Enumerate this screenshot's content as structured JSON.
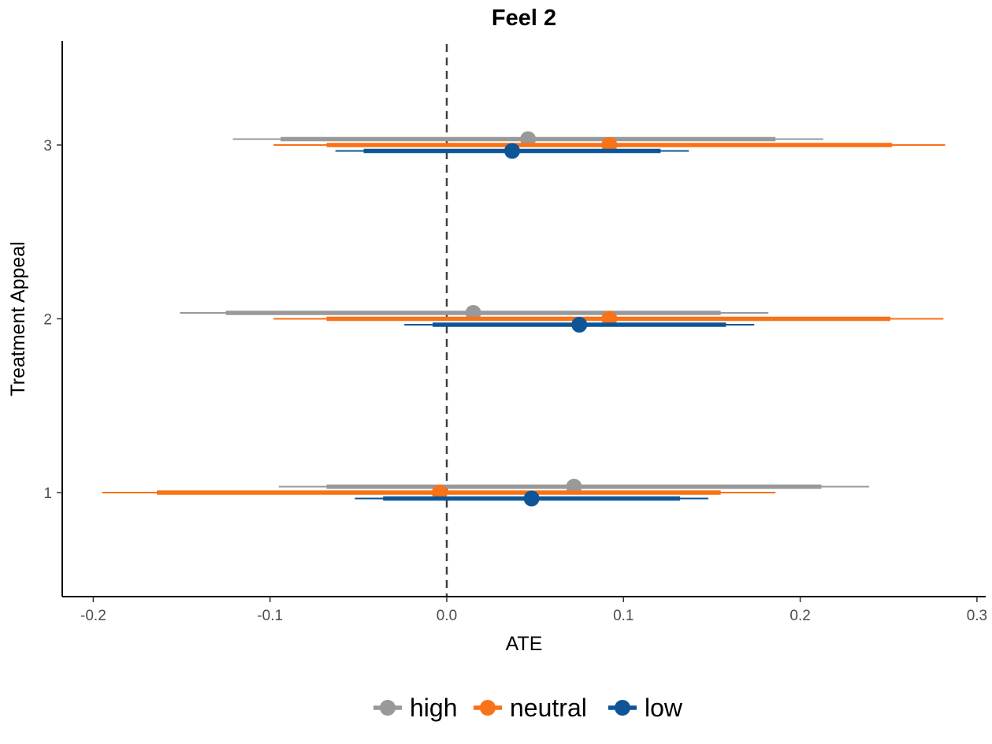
{
  "chart_data": {
    "type": "scatter",
    "title": "Feel 2",
    "xlabel": "ATE",
    "ylabel": "Treatment Appeal",
    "xlim": [
      -0.22,
      0.305
    ],
    "ylim": [
      0.42,
      3.6
    ],
    "x_ticks": [
      -0.2,
      -0.1,
      0.0,
      0.1,
      0.2,
      0.3
    ],
    "x_tick_labels": [
      "-0.2",
      "-0.1",
      "0.0",
      "0.1",
      "0.2",
      "0.3"
    ],
    "y_ticks": [
      1,
      2,
      3
    ],
    "y_tick_labels": [
      "1",
      "2",
      "3"
    ],
    "reference_line": {
      "x": 0,
      "style": "dashed"
    },
    "grid": false,
    "legend_position": "bottom",
    "series": [
      {
        "name": "high",
        "color": "#999999",
        "points": [
          {
            "y": 1,
            "estimate": 0.072,
            "ci_inner": [
              -0.068,
              0.212
            ],
            "ci_outer": [
              -0.095,
              0.239
            ]
          },
          {
            "y": 2,
            "estimate": 0.015,
            "ci_inner": [
              -0.125,
              0.155
            ],
            "ci_outer": [
              -0.151,
              0.182
            ]
          },
          {
            "y": 3,
            "estimate": 0.046,
            "ci_inner": [
              -0.094,
              0.186
            ],
            "ci_outer": [
              -0.121,
              0.213
            ]
          }
        ]
      },
      {
        "name": "neutral",
        "color": "#F87217",
        "points": [
          {
            "y": 1,
            "estimate": -0.004,
            "ci_inner": [
              -0.164,
              0.155
            ],
            "ci_outer": [
              -0.195,
              0.186
            ]
          },
          {
            "y": 2,
            "estimate": 0.092,
            "ci_inner": [
              -0.068,
              0.251
            ],
            "ci_outer": [
              -0.098,
              0.281
            ]
          },
          {
            "y": 3,
            "estimate": 0.092,
            "ci_inner": [
              -0.068,
              0.252
            ],
            "ci_outer": [
              -0.098,
              0.282
            ]
          }
        ]
      },
      {
        "name": "low",
        "color": "#0E5597",
        "points": [
          {
            "y": 1,
            "estimate": 0.048,
            "ci_inner": [
              -0.036,
              0.132
            ],
            "ci_outer": [
              -0.052,
              0.148
            ]
          },
          {
            "y": 2,
            "estimate": 0.075,
            "ci_inner": [
              -0.008,
              0.158
            ],
            "ci_outer": [
              -0.024,
              0.174
            ]
          },
          {
            "y": 3,
            "estimate": 0.037,
            "ci_inner": [
              -0.047,
              0.121
            ],
            "ci_outer": [
              -0.063,
              0.137
            ]
          }
        ]
      }
    ]
  }
}
